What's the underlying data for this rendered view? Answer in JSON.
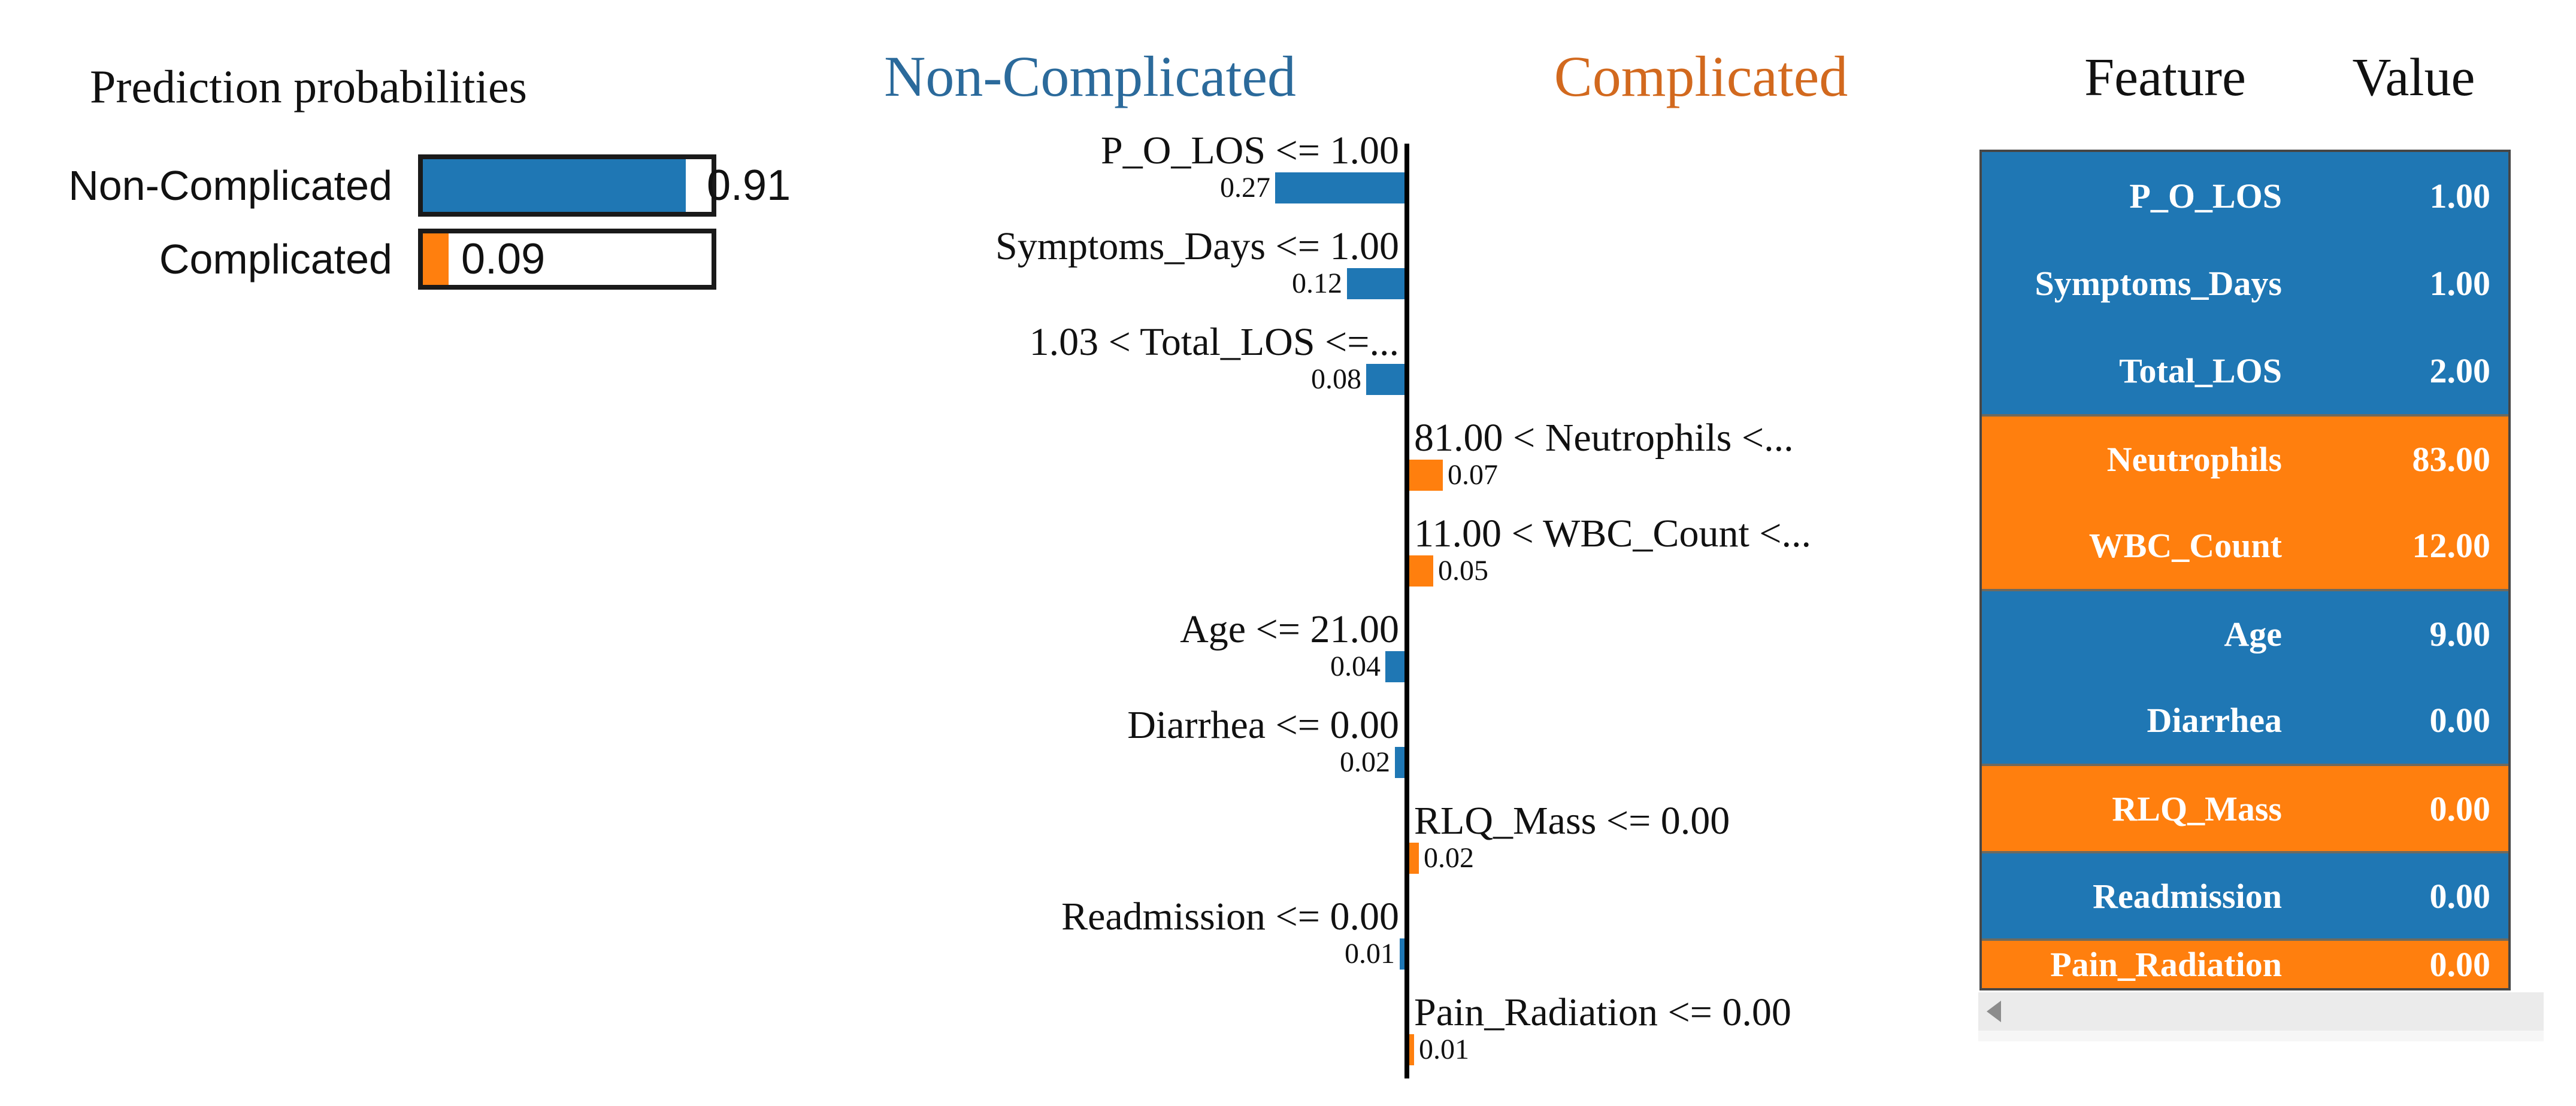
{
  "colors": {
    "blue": "#1f77b4",
    "orange": "#ff7f0e",
    "header_blue": "#2b6a9b",
    "header_orange": "#d2691e",
    "text": "#111111",
    "bar_border": "#1a1a1a",
    "table_border": "#474747",
    "block_separator": "#6e6a5e",
    "scrollbar_track": "#ebebeb",
    "scrollbar_arrow": "#8c8c8c"
  },
  "prediction_panel": {
    "title": "Prediction probabilities",
    "rows": [
      {
        "label": "Non-Complicated",
        "value": "0.91",
        "fraction": 0.91,
        "color_key": "blue",
        "value_placement": "outside"
      },
      {
        "label": "Complicated",
        "value": "0.09",
        "fraction": 0.09,
        "color_key": "orange",
        "value_placement": "inside"
      }
    ]
  },
  "chart": {
    "left_class": "Non-Complicated",
    "right_class": "Complicated",
    "features": [
      {
        "label": "P_O_LOS <= 1.00",
        "weight": 0.27,
        "weight_text": "0.27",
        "side": "left"
      },
      {
        "label": "Symptoms_Days <= 1.00",
        "weight": 0.12,
        "weight_text": "0.12",
        "side": "left"
      },
      {
        "label": "1.03 < Total_LOS <=...",
        "weight": 0.08,
        "weight_text": "0.08",
        "side": "left"
      },
      {
        "label": "81.00 < Neutrophils <...",
        "weight": 0.07,
        "weight_text": "0.07",
        "side": "right"
      },
      {
        "label": "11.00 < WBC_Count <...",
        "weight": 0.05,
        "weight_text": "0.05",
        "side": "right"
      },
      {
        "label": "Age <= 21.00",
        "weight": 0.04,
        "weight_text": "0.04",
        "side": "left"
      },
      {
        "label": "Diarrhea <= 0.00",
        "weight": 0.02,
        "weight_text": "0.02",
        "side": "left"
      },
      {
        "label": "RLQ_Mass <= 0.00",
        "weight": 0.02,
        "weight_text": "0.02",
        "side": "right"
      },
      {
        "label": "Readmission <= 0.00",
        "weight": 0.01,
        "weight_text": "0.01",
        "side": "left"
      },
      {
        "label": "Pain_Radiation <= 0.00",
        "weight": 0.01,
        "weight_text": "0.01",
        "side": "right"
      }
    ]
  },
  "table": {
    "header_feature": "Feature",
    "header_value": "Value",
    "rows": [
      {
        "feature": "P_O_LOS",
        "value": "1.00",
        "color_key": "blue",
        "clipped": false
      },
      {
        "feature": "Symptoms_Days",
        "value": "1.00",
        "color_key": "blue",
        "clipped": false
      },
      {
        "feature": "Total_LOS",
        "value": "2.00",
        "color_key": "blue",
        "clipped": false
      },
      {
        "feature": "Neutrophils",
        "value": "83.00",
        "color_key": "orange",
        "clipped": false
      },
      {
        "feature": "WBC_Count",
        "value": "12.00",
        "color_key": "orange",
        "clipped": false
      },
      {
        "feature": "Age",
        "value": "9.00",
        "color_key": "blue",
        "clipped": false
      },
      {
        "feature": "Diarrhea",
        "value": "0.00",
        "color_key": "blue",
        "clipped": false
      },
      {
        "feature": "RLQ_Mass",
        "value": "0.00",
        "color_key": "orange",
        "clipped": false
      },
      {
        "feature": "Readmission",
        "value": "0.00",
        "color_key": "blue",
        "clipped": false
      },
      {
        "feature": "Pain_Radiation",
        "value": "0.00",
        "color_key": "orange",
        "clipped": true
      }
    ]
  },
  "scrollbar": {
    "arrow_icon": "scroll-left-arrow"
  },
  "chart_data": [
    {
      "type": "bar",
      "title": "Prediction probabilities",
      "categories": [
        "Non-Complicated",
        "Complicated"
      ],
      "values": [
        0.91,
        0.09
      ],
      "orientation": "horizontal",
      "xlim": [
        0,
        1
      ],
      "colors": [
        "#1f77b4",
        "#ff7f0e"
      ],
      "data_labels": [
        "0.91",
        "0.09"
      ]
    },
    {
      "type": "bar",
      "title": "Local feature contributions (Non-Complicated vs Complicated)",
      "categories": [
        "P_O_LOS <= 1.00",
        "Symptoms_Days <= 1.00",
        "1.03 < Total_LOS <=...",
        "81.00 < Neutrophils <...",
        "11.00 < WBC_Count <...",
        "Age <= 21.00",
        "Diarrhea <= 0.00",
        "RLQ_Mass <= 0.00",
        "Readmission <= 0.00",
        "Pain_Radiation <= 0.00"
      ],
      "series": [
        {
          "name": "Non-Complicated",
          "values": [
            0.27,
            0.12,
            0.08,
            0,
            0,
            0.04,
            0.02,
            0,
            0.01,
            0
          ]
        },
        {
          "name": "Complicated",
          "values": [
            0,
            0,
            0,
            0.07,
            0.05,
            0,
            0,
            0.02,
            0,
            0.01
          ]
        }
      ],
      "orientation": "horizontal",
      "legend_position": "top",
      "grid": false,
      "axis": "center-vertical"
    },
    {
      "type": "table",
      "columns": [
        "Feature",
        "Value"
      ],
      "rows": [
        [
          "P_O_LOS",
          "1.00"
        ],
        [
          "Symptoms_Days",
          "1.00"
        ],
        [
          "Total_LOS",
          "2.00"
        ],
        [
          "Neutrophils",
          "83.00"
        ],
        [
          "WBC_Count",
          "12.00"
        ],
        [
          "Age",
          "9.00"
        ],
        [
          "Diarrhea",
          "0.00"
        ],
        [
          "RLQ_Mass",
          "0.00"
        ],
        [
          "Readmission",
          "0.00"
        ],
        [
          "Pain_Radiation",
          "0.00"
        ]
      ]
    }
  ]
}
